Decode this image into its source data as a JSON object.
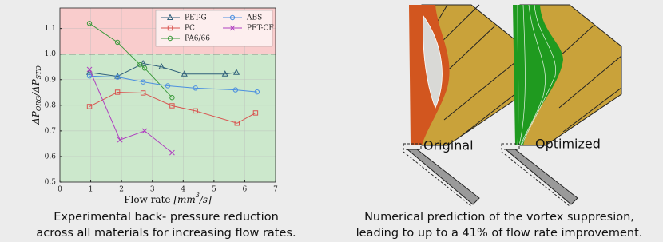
{
  "chart_data": {
    "type": "line",
    "x_label": [
      "Flow rate ",
      "[mm",
      "3",
      "/s]"
    ],
    "y_label": [
      "ΔP",
      "ORG",
      "/ΔP",
      "STD"
    ],
    "xlim": [
      0,
      7
    ],
    "ylim": [
      0.5,
      1.18
    ],
    "xticks": [
      0,
      1,
      2,
      3,
      4,
      5,
      6,
      7
    ],
    "yticks": [
      0.5,
      0.6,
      0.7,
      0.8,
      0.9,
      {
        "value": 1,
        "label": "1.0"
      },
      1.1
    ],
    "grid": true,
    "reference_line": 1,
    "upper_band_color": "#f9cccc",
    "lower_band_color": "#cce8cc",
    "legend": "upper right",
    "series": [
      {
        "name": "PET-G",
        "color": "#2f5f7a",
        "marker": "triangle",
        "x": [
          0.96,
          1.87,
          2.7,
          3.3,
          4.04,
          5.36,
          5.73
        ],
        "values": [
          0.928,
          0.913,
          0.963,
          0.95,
          0.922,
          0.922,
          0.928
        ]
      },
      {
        "name": "PC",
        "color": "#d9534f",
        "marker": "square",
        "x": [
          0.96,
          1.87,
          2.7,
          3.64,
          4.4,
          5.75,
          6.35
        ],
        "values": [
          0.795,
          0.851,
          0.848,
          0.798,
          0.778,
          0.73,
          0.77
        ]
      },
      {
        "name": "PA6/66",
        "color": "#3c9a3c",
        "marker": "circle",
        "x": [
          0.96,
          1.87,
          2.6,
          2.75,
          3.64
        ],
        "values": [
          1.12,
          1.046,
          0.958,
          0.945,
          0.83
        ]
      },
      {
        "name": "ABS",
        "color": "#4b8fe0",
        "marker": "circle",
        "x": [
          0.96,
          1.87,
          2.7,
          3.5,
          4.4,
          5.7,
          6.4
        ],
        "values": [
          0.914,
          0.91,
          0.891,
          0.876,
          0.867,
          0.86,
          0.852
        ]
      },
      {
        "name": "PET-CF",
        "color": "#b040c0",
        "marker": "x",
        "x": [
          0.96,
          1.95,
          2.75,
          3.64
        ],
        "values": [
          0.94,
          0.665,
          0.7,
          0.615
        ]
      }
    ]
  },
  "left_caption": [
    "Experimental back- pressure reduction",
    "across all materials for increasing flow rates."
  ],
  "diagram": {
    "labels": [
      "Original",
      "Optimized"
    ],
    "caption": [
      "Numerical prediction of the vortex suppresion,",
      "leading to up to a 41% of flow rate improvement."
    ]
  }
}
